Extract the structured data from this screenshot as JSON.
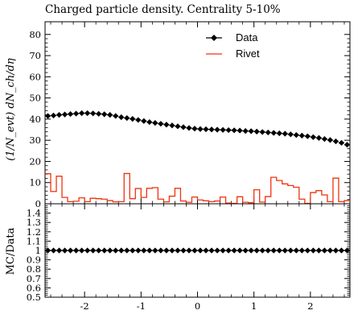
{
  "chart_data": [
    {
      "type": "line",
      "title": "Charged particle density. Centrality 5-10%",
      "ylabel": "(1/N_evt) dN_ch/dη",
      "xlabel": "",
      "xlim": [
        -2.7,
        2.7
      ],
      "ylim": [
        0,
        86
      ],
      "yticks": [
        0,
        10,
        20,
        30,
        40,
        50,
        60,
        70,
        80
      ],
      "ytick_labels": [
        "0",
        "10",
        "20",
        "30",
        "40",
        "50",
        "60",
        "70",
        "80"
      ],
      "legend_position": "top-right",
      "grid": false,
      "series": [
        {
          "name": "Data",
          "style": "markers-diamond",
          "color": "#000000",
          "x": [
            -2.65,
            -2.55,
            -2.45,
            -2.35,
            -2.25,
            -2.15,
            -2.05,
            -1.95,
            -1.85,
            -1.75,
            -1.65,
            -1.55,
            -1.45,
            -1.35,
            -1.25,
            -1.15,
            -1.05,
            -0.95,
            -0.85,
            -0.75,
            -0.65,
            -0.55,
            -0.45,
            -0.35,
            -0.25,
            -0.15,
            -0.05,
            0.05,
            0.15,
            0.25,
            0.35,
            0.45,
            0.55,
            0.65,
            0.75,
            0.85,
            0.95,
            1.05,
            1.15,
            1.25,
            1.35,
            1.45,
            1.55,
            1.65,
            1.75,
            1.85,
            1.95,
            2.05,
            2.15,
            2.25,
            2.35,
            2.45,
            2.55,
            2.65
          ],
          "values": [
            41.5,
            41.7,
            42.0,
            42.2,
            42.4,
            42.6,
            42.8,
            42.8,
            42.7,
            42.5,
            42.3,
            42.0,
            41.5,
            40.9,
            40.5,
            40.1,
            39.6,
            39.1,
            38.6,
            38.2,
            37.8,
            37.4,
            37.0,
            36.6,
            36.2,
            35.8,
            35.5,
            35.3,
            35.2,
            35.1,
            35.0,
            34.9,
            34.8,
            34.7,
            34.6,
            34.4,
            34.3,
            34.1,
            33.9,
            33.7,
            33.5,
            33.3,
            33.1,
            32.8,
            32.5,
            32.2,
            31.9,
            31.5,
            31.1,
            30.6,
            30.1,
            29.5,
            28.8,
            27.9
          ]
        },
        {
          "name": "Rivet",
          "style": "histogram-step",
          "color": "#ee3311",
          "bin_edges": [
            -2.7,
            -2.6,
            -2.5,
            -2.4,
            -2.3,
            -2.2,
            -2.1,
            -2.0,
            -1.9,
            -1.8,
            -1.7,
            -1.6,
            -1.5,
            -1.4,
            -1.3,
            -1.2,
            -1.1,
            -1.0,
            -0.9,
            -0.8,
            -0.7,
            -0.6,
            -0.5,
            -0.4,
            -0.3,
            -0.2,
            -0.1,
            0.0,
            0.1,
            0.2,
            0.3,
            0.4,
            0.5,
            0.6,
            0.7,
            0.8,
            0.9,
            1.0,
            1.1,
            1.2,
            1.3,
            1.4,
            1.5,
            1.6,
            1.7,
            1.8,
            1.9,
            2.0,
            2.1,
            2.2,
            2.3,
            2.4,
            2.5,
            2.6,
            2.7
          ],
          "values": [
            14.2,
            5.8,
            13.0,
            3.0,
            1.0,
            1.2,
            2.8,
            1.0,
            2.6,
            2.4,
            2.2,
            1.5,
            0.9,
            1.0,
            14.3,
            2.4,
            7.2,
            3.0,
            7.3,
            7.6,
            2.2,
            0.9,
            3.6,
            7.3,
            1.3,
            0.7,
            3.2,
            1.8,
            1.4,
            1.0,
            1.3,
            3.2,
            0.3,
            0.2,
            3.3,
            0.7,
            0.5,
            6.6,
            0.8,
            3.4,
            12.5,
            11.0,
            9.4,
            8.6,
            7.8,
            2.2,
            0.2,
            5.3,
            6.2,
            4.2,
            1.0,
            12.1,
            1.0,
            1.5
          ]
        }
      ]
    },
    {
      "type": "line",
      "ylabel": "MC/Data",
      "xlabel": "",
      "xlim": [
        -2.7,
        2.7
      ],
      "ylim": [
        0.5,
        1.5
      ],
      "yticks": [
        0.5,
        0.6,
        0.7,
        0.8,
        0.9,
        1.0,
        1.1,
        1.2,
        1.3,
        1.4
      ],
      "ytick_labels": [
        "0.5",
        "0.6",
        "0.7",
        "0.8",
        "0.9",
        "1",
        "1.1",
        "1.2",
        "1.3",
        "1.4"
      ],
      "xticks": [
        -2,
        -1,
        0,
        1,
        2
      ],
      "xtick_labels": [
        "-2",
        "-1",
        "0",
        "1",
        "2"
      ],
      "grid": false,
      "series": [
        {
          "name": "Data",
          "style": "markers-diamond",
          "color": "#000000",
          "x": [
            -2.65,
            -2.55,
            -2.45,
            -2.35,
            -2.25,
            -2.15,
            -2.05,
            -1.95,
            -1.85,
            -1.75,
            -1.65,
            -1.55,
            -1.45,
            -1.35,
            -1.25,
            -1.15,
            -1.05,
            -0.95,
            -0.85,
            -0.75,
            -0.65,
            -0.55,
            -0.45,
            -0.35,
            -0.25,
            -0.15,
            -0.05,
            0.05,
            0.15,
            0.25,
            0.35,
            0.45,
            0.55,
            0.65,
            0.75,
            0.85,
            0.95,
            1.05,
            1.15,
            1.25,
            1.35,
            1.45,
            1.55,
            1.65,
            1.75,
            1.85,
            1.95,
            2.05,
            2.15,
            2.25,
            2.35,
            2.45,
            2.55,
            2.65
          ],
          "values": [
            1,
            1,
            1,
            1,
            1,
            1,
            1,
            1,
            1,
            1,
            1,
            1,
            1,
            1,
            1,
            1,
            1,
            1,
            1,
            1,
            1,
            1,
            1,
            1,
            1,
            1,
            1,
            1,
            1,
            1,
            1,
            1,
            1,
            1,
            1,
            1,
            1,
            1,
            1,
            1,
            1,
            1,
            1,
            1,
            1,
            1,
            1,
            1,
            1,
            1,
            1,
            1,
            1,
            1
          ]
        }
      ]
    }
  ]
}
